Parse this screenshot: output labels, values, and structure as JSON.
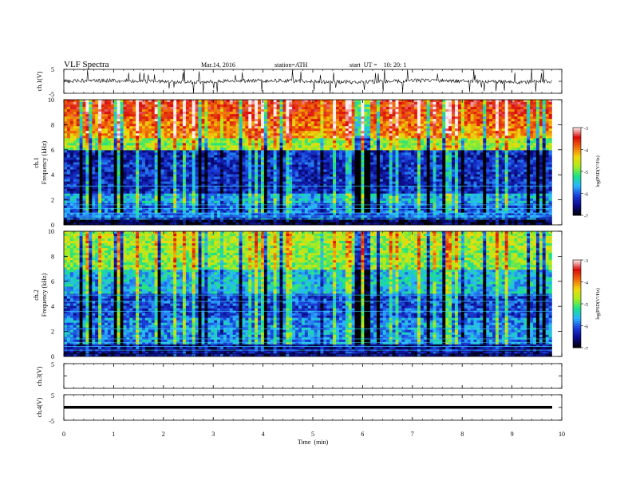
{
  "header": {
    "title": "VLF  Spectra",
    "date": "Mar.14, 2016",
    "station": "station=ATH",
    "start": "start  UT =    10: 20: 1"
  },
  "colorbar": {
    "label": "log(PSD(V²/Hz)",
    "ticks": [
      "-3",
      "-4",
      "-5",
      "-6",
      "-7"
    ]
  },
  "chart_data": [
    {
      "type": "line",
      "name": "ch1-waveform",
      "ylabel": "ch.1(V)",
      "ylim": [
        -5,
        5
      ],
      "y_ticks": [
        "5",
        "-5"
      ],
      "xlim": [
        0,
        10
      ],
      "baseline": 0
    },
    {
      "type": "heatmap",
      "name": "ch1-spectrogram",
      "ylabel_channel": "ch.1",
      "ylabel": "Frequency  (kHz)",
      "ylim": [
        0,
        10
      ],
      "y_ticks": [
        "0",
        "2",
        "4",
        "6",
        "8",
        "10"
      ],
      "xlim": [
        0,
        10
      ],
      "color_scale": "log(PSD(V²/Hz)",
      "clim": [
        -7,
        -3
      ]
    },
    {
      "type": "heatmap",
      "name": "ch2-spectrogram",
      "ylabel_channel": "ch.2",
      "ylabel": "Frequency  (kHz)",
      "ylim": [
        0,
        10
      ],
      "y_ticks": [
        "0",
        "2",
        "4",
        "6",
        "8",
        "10"
      ],
      "xlim": [
        0,
        10
      ],
      "color_scale": "log(PSD(V²/Hz)",
      "clim": [
        -7,
        -3
      ]
    },
    {
      "type": "line",
      "name": "ch3-waveform",
      "ylabel": "ch.3(V)",
      "ylim": [
        -5,
        5
      ],
      "y_ticks": [
        "5"
      ],
      "xlim": [
        0,
        10
      ],
      "baseline": null
    },
    {
      "type": "line",
      "name": "ch4-waveform",
      "ylabel": "ch.4(V)",
      "ylim": [
        -5,
        5
      ],
      "y_ticks": [
        "5",
        "-5"
      ],
      "xlim": [
        0,
        10
      ],
      "baseline": 0
    }
  ],
  "xaxis": {
    "label": "Time  (min)",
    "ticks": [
      "0",
      "1",
      "2",
      "3",
      "4",
      "5",
      "6",
      "7",
      "8",
      "9",
      "10"
    ],
    "xlim": [
      0,
      10
    ],
    "data_end": 9.8
  },
  "colors": {
    "colormap": [
      "#000000",
      "#0a0a8a",
      "#1a3cd8",
      "#2ab4ff",
      "#19e28a",
      "#a8ec1e",
      "#f0d80a",
      "#f06a0a",
      "#d80a0a",
      "#fff0f0"
    ],
    "line": "#000000",
    "axes": "#000000"
  }
}
